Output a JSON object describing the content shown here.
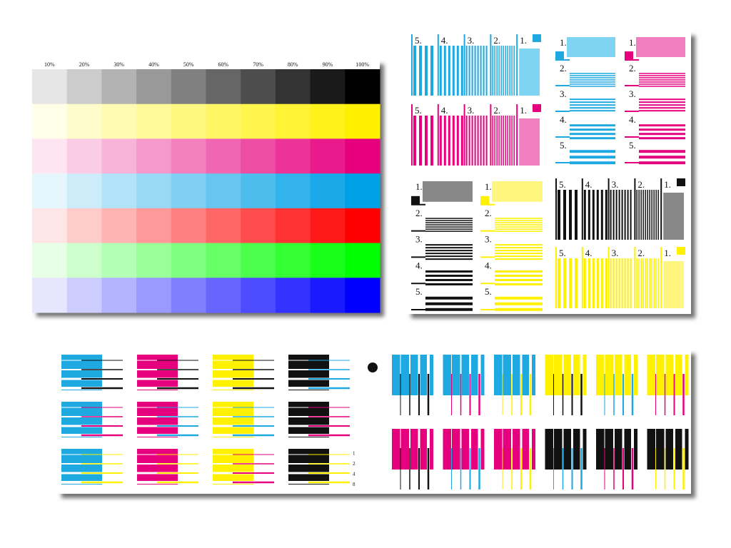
{
  "color_chart": {
    "labels": [
      "10%",
      "20%",
      "30%",
      "40%",
      "50%",
      "60%",
      "70%",
      "80%",
      "90%",
      "100%"
    ]
  },
  "line_panels": {
    "step_labels": [
      "1.",
      "2.",
      "3.",
      "4.",
      "5."
    ]
  },
  "registration": {
    "line_weights": [
      "1",
      "2",
      "4",
      "8"
    ]
  }
}
